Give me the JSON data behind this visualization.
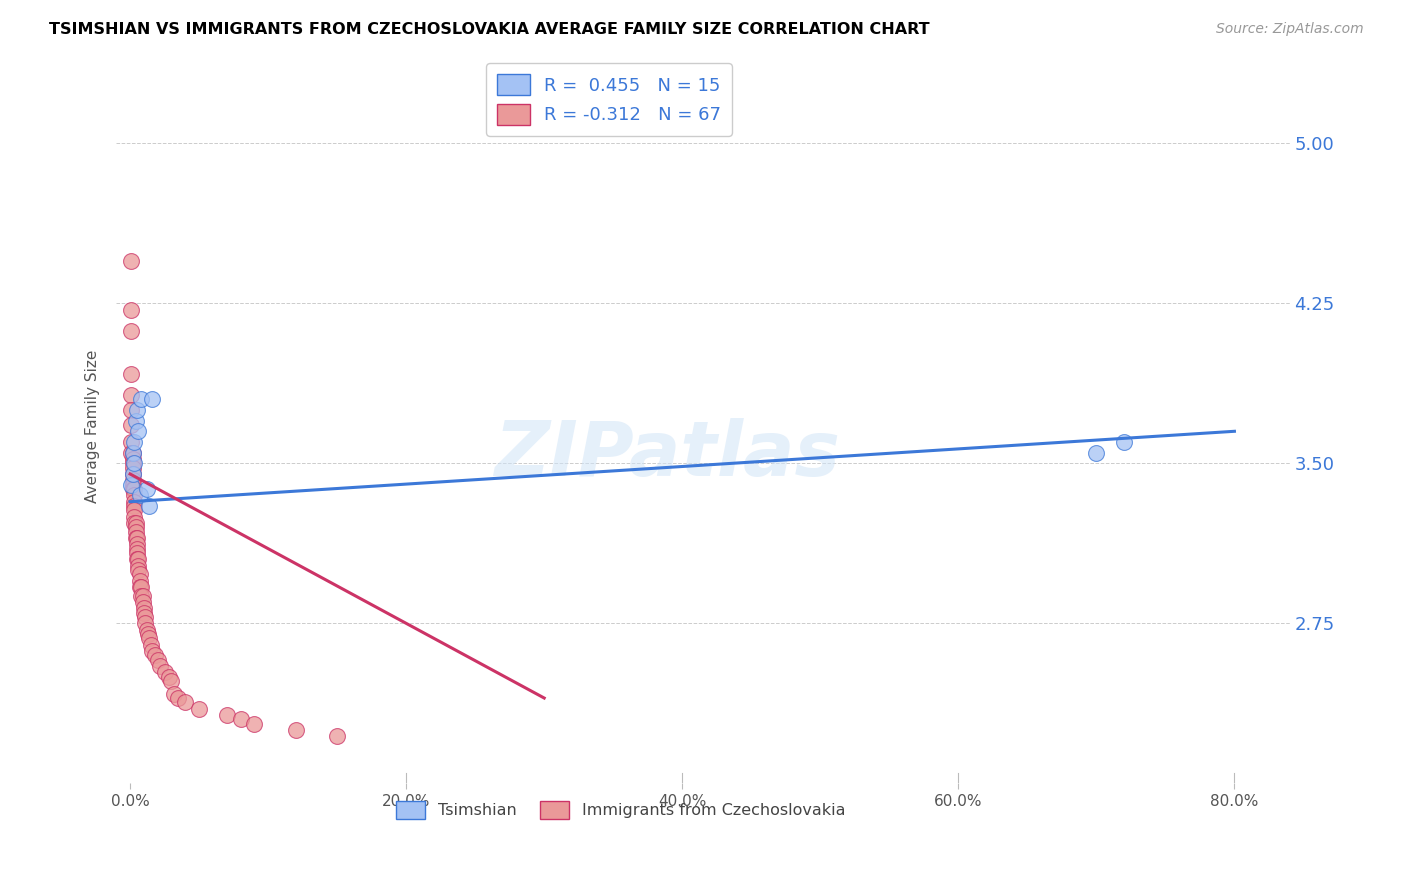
{
  "title": "TSIMSHIAN VS IMMIGRANTS FROM CZECHOSLOVAKIA AVERAGE FAMILY SIZE CORRELATION CHART",
  "source": "Source: ZipAtlas.com",
  "ylabel": "Average Family Size",
  "xlabel_ticks": [
    "0.0%",
    "20.0%",
    "40.0%",
    "60.0%",
    "80.0%"
  ],
  "xlabel_vals": [
    0.0,
    0.2,
    0.4,
    0.6,
    0.8
  ],
  "ytick_vals": [
    2.75,
    3.5,
    4.25,
    5.0
  ],
  "ytick_labels": [
    "2.75",
    "3.50",
    "4.25",
    "5.00"
  ],
  "xlim": [
    -0.01,
    0.84
  ],
  "ylim": [
    2.0,
    5.35
  ],
  "watermark": "ZIPatlas",
  "legend1_label": "R =  0.455   N = 15",
  "legend2_label": "R = -0.312   N = 67",
  "blue_color": "#a4c2f4",
  "pink_color": "#ea9999",
  "blue_line_color": "#3c78d8",
  "pink_line_color": "#cc3366",
  "background_color": "#ffffff",
  "grid_color": "#cccccc",
  "title_color": "#000000",
  "right_tick_color": "#3c78d8",
  "tsimshian_x": [
    0.001,
    0.002,
    0.002,
    0.003,
    0.003,
    0.004,
    0.005,
    0.006,
    0.007,
    0.008,
    0.012,
    0.014,
    0.016,
    0.7,
    0.72
  ],
  "tsimshian_y": [
    3.4,
    3.45,
    3.55,
    3.5,
    3.6,
    3.7,
    3.75,
    3.65,
    3.35,
    3.8,
    3.38,
    3.3,
    3.8,
    3.55,
    3.6
  ],
  "czech_x": [
    0.001,
    0.001,
    0.001,
    0.001,
    0.001,
    0.001,
    0.001,
    0.001,
    0.001,
    0.002,
    0.002,
    0.002,
    0.002,
    0.002,
    0.002,
    0.002,
    0.002,
    0.003,
    0.003,
    0.003,
    0.003,
    0.003,
    0.003,
    0.003,
    0.004,
    0.004,
    0.004,
    0.004,
    0.005,
    0.005,
    0.005,
    0.005,
    0.005,
    0.006,
    0.006,
    0.006,
    0.007,
    0.007,
    0.007,
    0.008,
    0.008,
    0.009,
    0.009,
    0.01,
    0.01,
    0.011,
    0.011,
    0.012,
    0.013,
    0.014,
    0.015,
    0.016,
    0.018,
    0.02,
    0.022,
    0.025,
    0.028,
    0.03,
    0.032,
    0.035,
    0.04,
    0.05,
    0.07,
    0.08,
    0.09,
    0.12,
    0.15
  ],
  "czech_y": [
    4.45,
    4.22,
    4.12,
    3.92,
    3.82,
    3.75,
    3.68,
    3.6,
    3.55,
    3.55,
    3.52,
    3.5,
    3.48,
    3.45,
    3.42,
    3.4,
    3.38,
    3.38,
    3.35,
    3.32,
    3.3,
    3.28,
    3.25,
    3.22,
    3.22,
    3.2,
    3.18,
    3.15,
    3.15,
    3.12,
    3.1,
    3.08,
    3.05,
    3.05,
    3.02,
    3.0,
    2.98,
    2.95,
    2.92,
    2.92,
    2.88,
    2.88,
    2.85,
    2.82,
    2.8,
    2.78,
    2.75,
    2.72,
    2.7,
    2.68,
    2.65,
    2.62,
    2.6,
    2.58,
    2.55,
    2.52,
    2.5,
    2.48,
    2.42,
    2.4,
    2.38,
    2.35,
    2.32,
    2.3,
    2.28,
    2.25,
    2.22
  ],
  "blue_line_x": [
    0.0,
    0.8
  ],
  "blue_line_y": [
    3.32,
    3.65
  ],
  "pink_line_x": [
    0.0,
    0.3
  ],
  "pink_line_y": [
    3.45,
    2.4
  ]
}
